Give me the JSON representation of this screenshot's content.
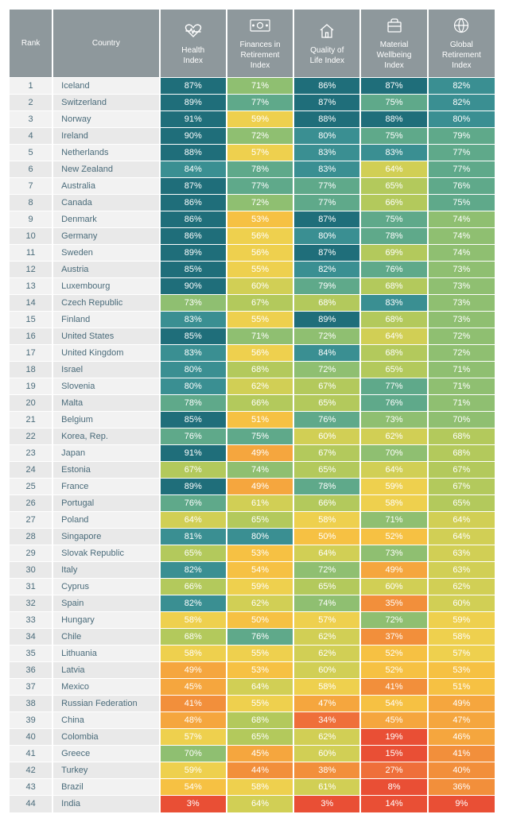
{
  "headers": {
    "rank": "Rank",
    "country": "Country",
    "col1": "Health\nIndex",
    "col2": "Finances in\nRetirement\nIndex",
    "col3": "Quality of\nLife Index",
    "col4": "Material\nWellbeing\nIndex",
    "col5": "Global\nRetirement\nIndex"
  },
  "colors": {
    "header_bg": "#8e989c",
    "header_text": "#ffffff",
    "row_even_bg": "#f2f2f2",
    "row_odd_bg": "#e9e9e9",
    "row_text": "#4a6b7a",
    "value_text": "#ffffff",
    "scale": [
      {
        "min": 0,
        "c": "#e94f35"
      },
      {
        "min": 20,
        "c": "#ef6f3a"
      },
      {
        "min": 35,
        "c": "#f28f3b"
      },
      {
        "min": 45,
        "c": "#f5a63e"
      },
      {
        "min": 50,
        "c": "#f6c143"
      },
      {
        "min": 55,
        "c": "#eed04e"
      },
      {
        "min": 60,
        "c": "#d1cf55"
      },
      {
        "min": 65,
        "c": "#b3c95c"
      },
      {
        "min": 70,
        "c": "#8fbf71"
      },
      {
        "min": 75,
        "c": "#5fa98a"
      },
      {
        "min": 80,
        "c": "#3a8f92"
      },
      {
        "min": 85,
        "c": "#1f6e7a"
      }
    ]
  },
  "rows": [
    {
      "rank": 1,
      "country": "Iceland",
      "v": [
        87,
        71,
        86,
        87,
        82
      ]
    },
    {
      "rank": 2,
      "country": "Switzerland",
      "v": [
        89,
        77,
        87,
        75,
        82
      ]
    },
    {
      "rank": 3,
      "country": "Norway",
      "v": [
        91,
        59,
        88,
        88,
        80
      ]
    },
    {
      "rank": 4,
      "country": "Ireland",
      "v": [
        90,
        72,
        80,
        75,
        79
      ]
    },
    {
      "rank": 5,
      "country": "Netherlands",
      "v": [
        88,
        57,
        83,
        83,
        77
      ]
    },
    {
      "rank": 6,
      "country": "New Zealand",
      "v": [
        84,
        78,
        83,
        64,
        77
      ]
    },
    {
      "rank": 7,
      "country": "Australia",
      "v": [
        87,
        77,
        77,
        65,
        76
      ]
    },
    {
      "rank": 8,
      "country": "Canada",
      "v": [
        86,
        72,
        77,
        66,
        75
      ]
    },
    {
      "rank": 9,
      "country": "Denmark",
      "v": [
        86,
        53,
        87,
        75,
        74
      ]
    },
    {
      "rank": 10,
      "country": "Germany",
      "v": [
        86,
        56,
        80,
        78,
        74
      ]
    },
    {
      "rank": 11,
      "country": "Sweden",
      "v": [
        89,
        56,
        87,
        69,
        74
      ]
    },
    {
      "rank": 12,
      "country": "Austria",
      "v": [
        85,
        55,
        82,
        76,
        73
      ]
    },
    {
      "rank": 13,
      "country": "Luxembourg",
      "v": [
        90,
        60,
        79,
        68,
        73
      ]
    },
    {
      "rank": 14,
      "country": "Czech Republic",
      "v": [
        73,
        67,
        68,
        83,
        73
      ]
    },
    {
      "rank": 15,
      "country": "Finland",
      "v": [
        83,
        55,
        89,
        68,
        73
      ]
    },
    {
      "rank": 16,
      "country": "United States",
      "v": [
        85,
        71,
        72,
        64,
        72
      ]
    },
    {
      "rank": 17,
      "country": "United Kingdom",
      "v": [
        83,
        56,
        84,
        68,
        72
      ]
    },
    {
      "rank": 18,
      "country": "Israel",
      "v": [
        80,
        68,
        72,
        65,
        71
      ]
    },
    {
      "rank": 19,
      "country": "Slovenia",
      "v": [
        80,
        62,
        67,
        77,
        71
      ]
    },
    {
      "rank": 20,
      "country": "Malta",
      "v": [
        78,
        66,
        65,
        76,
        71
      ]
    },
    {
      "rank": 21,
      "country": "Belgium",
      "v": [
        85,
        51,
        76,
        73,
        70
      ]
    },
    {
      "rank": 22,
      "country": "Korea, Rep.",
      "v": [
        76,
        75,
        60,
        62,
        68
      ]
    },
    {
      "rank": 23,
      "country": "Japan",
      "v": [
        91,
        49,
        67,
        70,
        68
      ]
    },
    {
      "rank": 24,
      "country": "Estonia",
      "v": [
        67,
        74,
        65,
        64,
        67
      ]
    },
    {
      "rank": 25,
      "country": "France",
      "v": [
        89,
        49,
        78,
        59,
        67
      ]
    },
    {
      "rank": 26,
      "country": "Portugal",
      "v": [
        76,
        61,
        66,
        58,
        65
      ]
    },
    {
      "rank": 27,
      "country": "Poland",
      "v": [
        64,
        65,
        58,
        71,
        64
      ]
    },
    {
      "rank": 28,
      "country": "Singapore",
      "v": [
        81,
        80,
        50,
        52,
        64
      ]
    },
    {
      "rank": 29,
      "country": "Slovak Republic",
      "v": [
        65,
        53,
        64,
        73,
        63
      ]
    },
    {
      "rank": 30,
      "country": "Italy",
      "v": [
        82,
        54,
        72,
        49,
        63
      ]
    },
    {
      "rank": 31,
      "country": "Cyprus",
      "v": [
        66,
        59,
        65,
        60,
        62
      ]
    },
    {
      "rank": 32,
      "country": "Spain",
      "v": [
        82,
        62,
        74,
        35,
        60
      ]
    },
    {
      "rank": 33,
      "country": "Hungary",
      "v": [
        58,
        50,
        57,
        72,
        59
      ]
    },
    {
      "rank": 34,
      "country": "Chile",
      "v": [
        68,
        76,
        62,
        37,
        58
      ]
    },
    {
      "rank": 35,
      "country": "Lithuania",
      "v": [
        58,
        55,
        62,
        52,
        57
      ]
    },
    {
      "rank": 36,
      "country": "Latvia",
      "v": [
        49,
        53,
        60,
        52,
        53
      ]
    },
    {
      "rank": 37,
      "country": "Mexico",
      "v": [
        45,
        64,
        58,
        41,
        51
      ]
    },
    {
      "rank": 38,
      "country": "Russian Federation",
      "v": [
        41,
        55,
        47,
        54,
        49
      ]
    },
    {
      "rank": 39,
      "country": "China",
      "v": [
        48,
        68,
        34,
        45,
        47
      ]
    },
    {
      "rank": 40,
      "country": "Colombia",
      "v": [
        57,
        65,
        62,
        19,
        46
      ]
    },
    {
      "rank": 41,
      "country": "Greece",
      "v": [
        70,
        45,
        60,
        15,
        41
      ]
    },
    {
      "rank": 42,
      "country": "Turkey",
      "v": [
        59,
        44,
        38,
        27,
        40
      ]
    },
    {
      "rank": 43,
      "country": "Brazil",
      "v": [
        54,
        58,
        61,
        8,
        36
      ]
    },
    {
      "rank": 44,
      "country": "India",
      "v": [
        3,
        64,
        3,
        14,
        9
      ]
    }
  ]
}
